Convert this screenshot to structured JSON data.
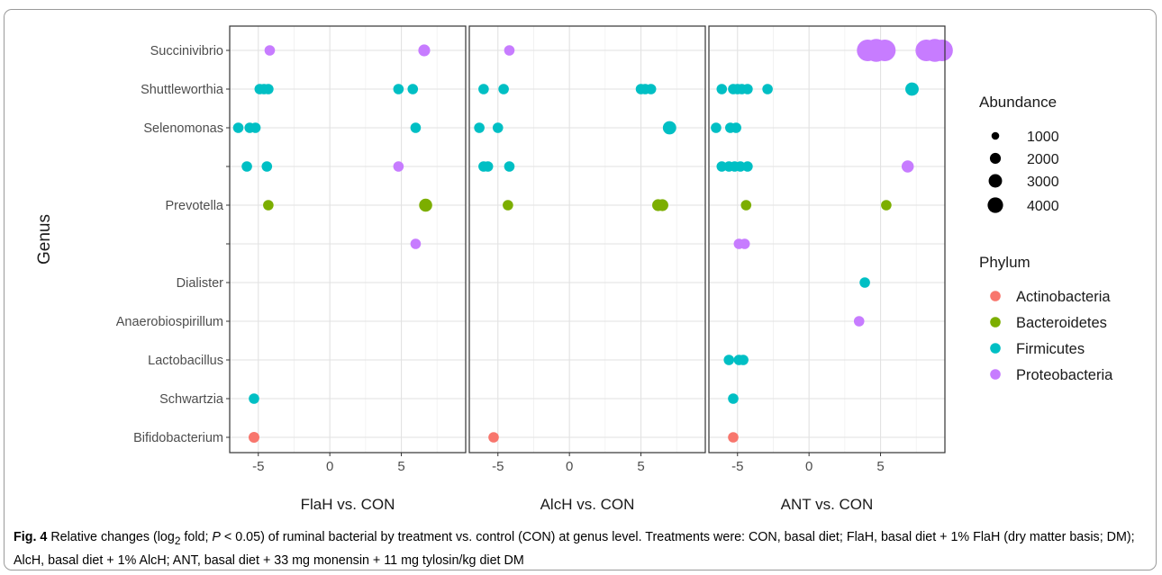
{
  "chart_data": {
    "type": "scatter",
    "ylabel": "Genus",
    "genera": [
      "Succinivibrio",
      "Shuttleworthia",
      "Selenomonas",
      "",
      "Prevotella",
      "",
      "Dialister",
      "Anaerobiospirillum",
      "Lactobacillus",
      "Schwartzia",
      "Bifidobacterium"
    ],
    "xlim": [
      -7,
      9.5
    ],
    "xticks": [
      -5,
      0,
      5
    ],
    "xtick_labels": [
      "-5",
      "0",
      "5"
    ],
    "grid": true,
    "phylum_colors": {
      "Actinobacteria": "#F8766D",
      "Bacteroidetes": "#7CAE00",
      "Firmicutes": "#00BFC4",
      "Proteobacteria": "#C77CFF"
    },
    "panels": [
      {
        "title": "FlaH vs. CON",
        "points": [
          {
            "genus": 0,
            "x": -4.2,
            "abundance": 700,
            "phylum": "Proteobacteria"
          },
          {
            "genus": 0,
            "x": 6.6,
            "abundance": 900,
            "phylum": "Proteobacteria"
          },
          {
            "genus": 1,
            "x": -4.9,
            "abundance": 700,
            "phylum": "Firmicutes"
          },
          {
            "genus": 1,
            "x": -4.6,
            "abundance": 700,
            "phylum": "Firmicutes"
          },
          {
            "genus": 1,
            "x": -4.3,
            "abundance": 700,
            "phylum": "Firmicutes"
          },
          {
            "genus": 1,
            "x": 4.8,
            "abundance": 700,
            "phylum": "Firmicutes"
          },
          {
            "genus": 1,
            "x": 5.8,
            "abundance": 700,
            "phylum": "Firmicutes"
          },
          {
            "genus": 2,
            "x": -6.4,
            "abundance": 700,
            "phylum": "Firmicutes"
          },
          {
            "genus": 2,
            "x": -5.6,
            "abundance": 700,
            "phylum": "Firmicutes"
          },
          {
            "genus": 2,
            "x": -5.2,
            "abundance": 700,
            "phylum": "Firmicutes"
          },
          {
            "genus": 2,
            "x": 6.0,
            "abundance": 700,
            "phylum": "Firmicutes"
          },
          {
            "genus": 3,
            "x": -5.8,
            "abundance": 700,
            "phylum": "Firmicutes"
          },
          {
            "genus": 3,
            "x": -4.4,
            "abundance": 700,
            "phylum": "Firmicutes"
          },
          {
            "genus": 3,
            "x": 4.8,
            "abundance": 700,
            "phylum": "Proteobacteria"
          },
          {
            "genus": 4,
            "x": -4.3,
            "abundance": 700,
            "phylum": "Bacteroidetes"
          },
          {
            "genus": 4,
            "x": 6.7,
            "abundance": 1100,
            "phylum": "Bacteroidetes"
          },
          {
            "genus": 5,
            "x": 6.0,
            "abundance": 700,
            "phylum": "Proteobacteria"
          },
          {
            "genus": 9,
            "x": -5.3,
            "abundance": 700,
            "phylum": "Firmicutes"
          },
          {
            "genus": 10,
            "x": -5.3,
            "abundance": 750,
            "phylum": "Actinobacteria"
          }
        ]
      },
      {
        "title": "AlcH vs. CON",
        "points": [
          {
            "genus": 0,
            "x": -4.2,
            "abundance": 700,
            "phylum": "Proteobacteria"
          },
          {
            "genus": 1,
            "x": -6.0,
            "abundance": 700,
            "phylum": "Firmicutes"
          },
          {
            "genus": 1,
            "x": -4.6,
            "abundance": 700,
            "phylum": "Firmicutes"
          },
          {
            "genus": 1,
            "x": 5.0,
            "abundance": 700,
            "phylum": "Firmicutes"
          },
          {
            "genus": 1,
            "x": 5.3,
            "abundance": 700,
            "phylum": "Firmicutes"
          },
          {
            "genus": 1,
            "x": 5.7,
            "abundance": 700,
            "phylum": "Firmicutes"
          },
          {
            "genus": 2,
            "x": -6.3,
            "abundance": 700,
            "phylum": "Firmicutes"
          },
          {
            "genus": 2,
            "x": -5.0,
            "abundance": 700,
            "phylum": "Firmicutes"
          },
          {
            "genus": 2,
            "x": 7.0,
            "abundance": 1150,
            "phylum": "Firmicutes"
          },
          {
            "genus": 3,
            "x": -6.0,
            "abundance": 700,
            "phylum": "Firmicutes"
          },
          {
            "genus": 3,
            "x": -5.7,
            "abundance": 700,
            "phylum": "Firmicutes"
          },
          {
            "genus": 3,
            "x": -4.2,
            "abundance": 700,
            "phylum": "Firmicutes"
          },
          {
            "genus": 4,
            "x": -4.3,
            "abundance": 700,
            "phylum": "Bacteroidetes"
          },
          {
            "genus": 4,
            "x": 6.2,
            "abundance": 900,
            "phylum": "Bacteroidetes"
          },
          {
            "genus": 4,
            "x": 6.5,
            "abundance": 900,
            "phylum": "Bacteroidetes"
          },
          {
            "genus": 10,
            "x": -5.3,
            "abundance": 700,
            "phylum": "Actinobacteria"
          }
        ]
      },
      {
        "title": "ANT vs. CON",
        "points": [
          {
            "genus": 0,
            "x": 4.1,
            "abundance": 3000,
            "phylum": "Proteobacteria"
          },
          {
            "genus": 0,
            "x": 4.7,
            "abundance": 3400,
            "phylum": "Proteobacteria"
          },
          {
            "genus": 0,
            "x": 5.3,
            "abundance": 3000,
            "phylum": "Proteobacteria"
          },
          {
            "genus": 0,
            "x": 8.2,
            "abundance": 3000,
            "phylum": "Proteobacteria"
          },
          {
            "genus": 0,
            "x": 8.8,
            "abundance": 3400,
            "phylum": "Proteobacteria"
          },
          {
            "genus": 0,
            "x": 9.3,
            "abundance": 3000,
            "phylum": "Proteobacteria"
          },
          {
            "genus": 1,
            "x": -6.1,
            "abundance": 700,
            "phylum": "Firmicutes"
          },
          {
            "genus": 1,
            "x": -5.3,
            "abundance": 700,
            "phylum": "Firmicutes"
          },
          {
            "genus": 1,
            "x": -5.0,
            "abundance": 700,
            "phylum": "Firmicutes"
          },
          {
            "genus": 1,
            "x": -4.7,
            "abundance": 700,
            "phylum": "Firmicutes"
          },
          {
            "genus": 1,
            "x": -4.3,
            "abundance": 700,
            "phylum": "Firmicutes"
          },
          {
            "genus": 1,
            "x": -2.9,
            "abundance": 700,
            "phylum": "Firmicutes"
          },
          {
            "genus": 1,
            "x": 7.2,
            "abundance": 1150,
            "phylum": "Firmicutes"
          },
          {
            "genus": 2,
            "x": -6.5,
            "abundance": 700,
            "phylum": "Firmicutes"
          },
          {
            "genus": 2,
            "x": -5.5,
            "abundance": 700,
            "phylum": "Firmicutes"
          },
          {
            "genus": 2,
            "x": -5.1,
            "abundance": 700,
            "phylum": "Firmicutes"
          },
          {
            "genus": 3,
            "x": -6.1,
            "abundance": 700,
            "phylum": "Firmicutes"
          },
          {
            "genus": 3,
            "x": -5.6,
            "abundance": 700,
            "phylum": "Firmicutes"
          },
          {
            "genus": 3,
            "x": -5.2,
            "abundance": 700,
            "phylum": "Firmicutes"
          },
          {
            "genus": 3,
            "x": -4.8,
            "abundance": 700,
            "phylum": "Firmicutes"
          },
          {
            "genus": 3,
            "x": -4.3,
            "abundance": 700,
            "phylum": "Firmicutes"
          },
          {
            "genus": 3,
            "x": 6.9,
            "abundance": 950,
            "phylum": "Proteobacteria"
          },
          {
            "genus": 4,
            "x": -4.4,
            "abundance": 700,
            "phylum": "Bacteroidetes"
          },
          {
            "genus": 4,
            "x": 5.4,
            "abundance": 700,
            "phylum": "Bacteroidetes"
          },
          {
            "genus": 5,
            "x": -4.9,
            "abundance": 700,
            "phylum": "Proteobacteria"
          },
          {
            "genus": 5,
            "x": -4.5,
            "abundance": 700,
            "phylum": "Proteobacteria"
          },
          {
            "genus": 6,
            "x": 3.9,
            "abundance": 700,
            "phylum": "Firmicutes"
          },
          {
            "genus": 7,
            "x": 3.5,
            "abundance": 700,
            "phylum": "Proteobacteria"
          },
          {
            "genus": 8,
            "x": -5.6,
            "abundance": 700,
            "phylum": "Firmicutes"
          },
          {
            "genus": 8,
            "x": -4.9,
            "abundance": 700,
            "phylum": "Firmicutes"
          },
          {
            "genus": 8,
            "x": -4.6,
            "abundance": 700,
            "phylum": "Firmicutes"
          },
          {
            "genus": 9,
            "x": -5.3,
            "abundance": 700,
            "phylum": "Firmicutes"
          },
          {
            "genus": 10,
            "x": -5.3,
            "abundance": 700,
            "phylum": "Actinobacteria"
          }
        ]
      }
    ],
    "legend": {
      "placement": "right",
      "size_title": "Abundance",
      "size_entries": [
        1000,
        2000,
        3000,
        4000
      ],
      "size_labels": [
        "1000",
        "2000",
        "3000",
        "4000"
      ],
      "color_title": "Phylum",
      "color_entries": [
        "Actinobacteria",
        "Bacteroidetes",
        "Firmicutes",
        "Proteobacteria"
      ]
    }
  },
  "caption": {
    "label": "Fig. 4",
    "part1": " Relative changes (log",
    "sub": "2",
    "part2": " fold; ",
    "p": "P",
    "part3": " < 0.05) of ruminal bacterial by treatment vs. control (CON) at genus level. Treatments were: CON, basal diet; FlaH, basal diet + 1% FlaH (dry matter basis; DM); AlcH, basal diet + 1% AlcH; ANT, basal diet + 33 mg monensin + 11 mg tylosin/kg diet DM"
  }
}
